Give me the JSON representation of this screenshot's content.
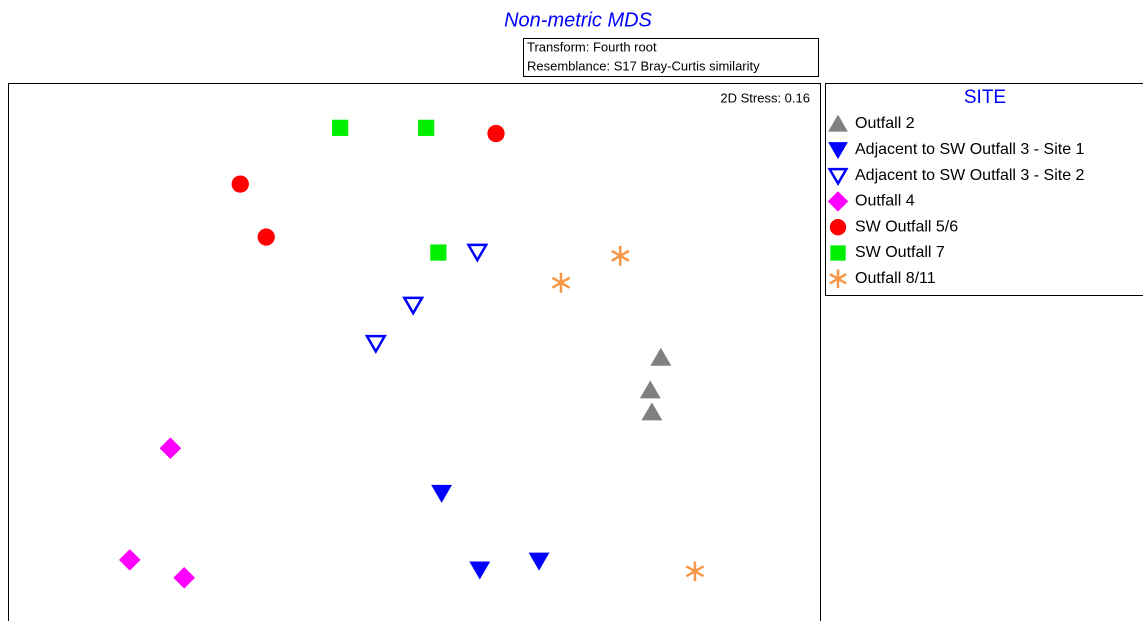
{
  "chart_data": {
    "type": "scatter",
    "title": "Non-metric MDS",
    "annotations": [
      "Transform: Fourth root",
      "Resemblance: S17 Bray-Curtis similarity"
    ],
    "stress_label": "2D Stress: 0.16",
    "legend_title": "SITE",
    "legend": "outside-right",
    "xlim": [
      0,
      100
    ],
    "ylim": [
      0,
      66
    ],
    "series": [
      {
        "name": "Outfall 2",
        "color": "#808080",
        "marker": "triangle-up",
        "x": [
          80.4,
          79.1,
          79.3
        ],
        "y": [
          32.3,
          28.3,
          25.6
        ]
      },
      {
        "name": "Adjacent to SW Outfall 3 - Site 1",
        "color": "#0000ff",
        "marker": "triangle-down",
        "x": [
          53.4,
          58.1,
          65.4
        ],
        "y": [
          15.7,
          6.3,
          7.4
        ]
      },
      {
        "name": "Adjacent to SW Outfall 3 - Site 2",
        "color": "#0000ff",
        "marker": "triangle-down-open",
        "x": [
          57.8,
          49.9,
          45.3
        ],
        "y": [
          45.3,
          38.8,
          34.1
        ]
      },
      {
        "name": "Outfall 4",
        "color": "#ff00ff",
        "marker": "diamond",
        "x": [
          20.0,
          15.0,
          21.7
        ],
        "y": [
          21.2,
          7.5,
          5.3
        ]
      },
      {
        "name": "SW Outfall 5/6",
        "color": "#ff0000",
        "marker": "circle",
        "x": [
          60.1,
          28.6,
          31.8
        ],
        "y": [
          59.8,
          53.6,
          47.1
        ]
      },
      {
        "name": "SW Outfall 7",
        "color": "#00ee00",
        "marker": "square",
        "x": [
          40.9,
          51.5,
          53.0
        ],
        "y": [
          60.5,
          60.5,
          45.2
        ]
      },
      {
        "name": "Outfall 8/11",
        "color": "#f79646",
        "marker": "asterisk",
        "x": [
          75.4,
          68.1,
          84.6
        ],
        "y": [
          44.8,
          41.5,
          6.1
        ]
      }
    ]
  }
}
